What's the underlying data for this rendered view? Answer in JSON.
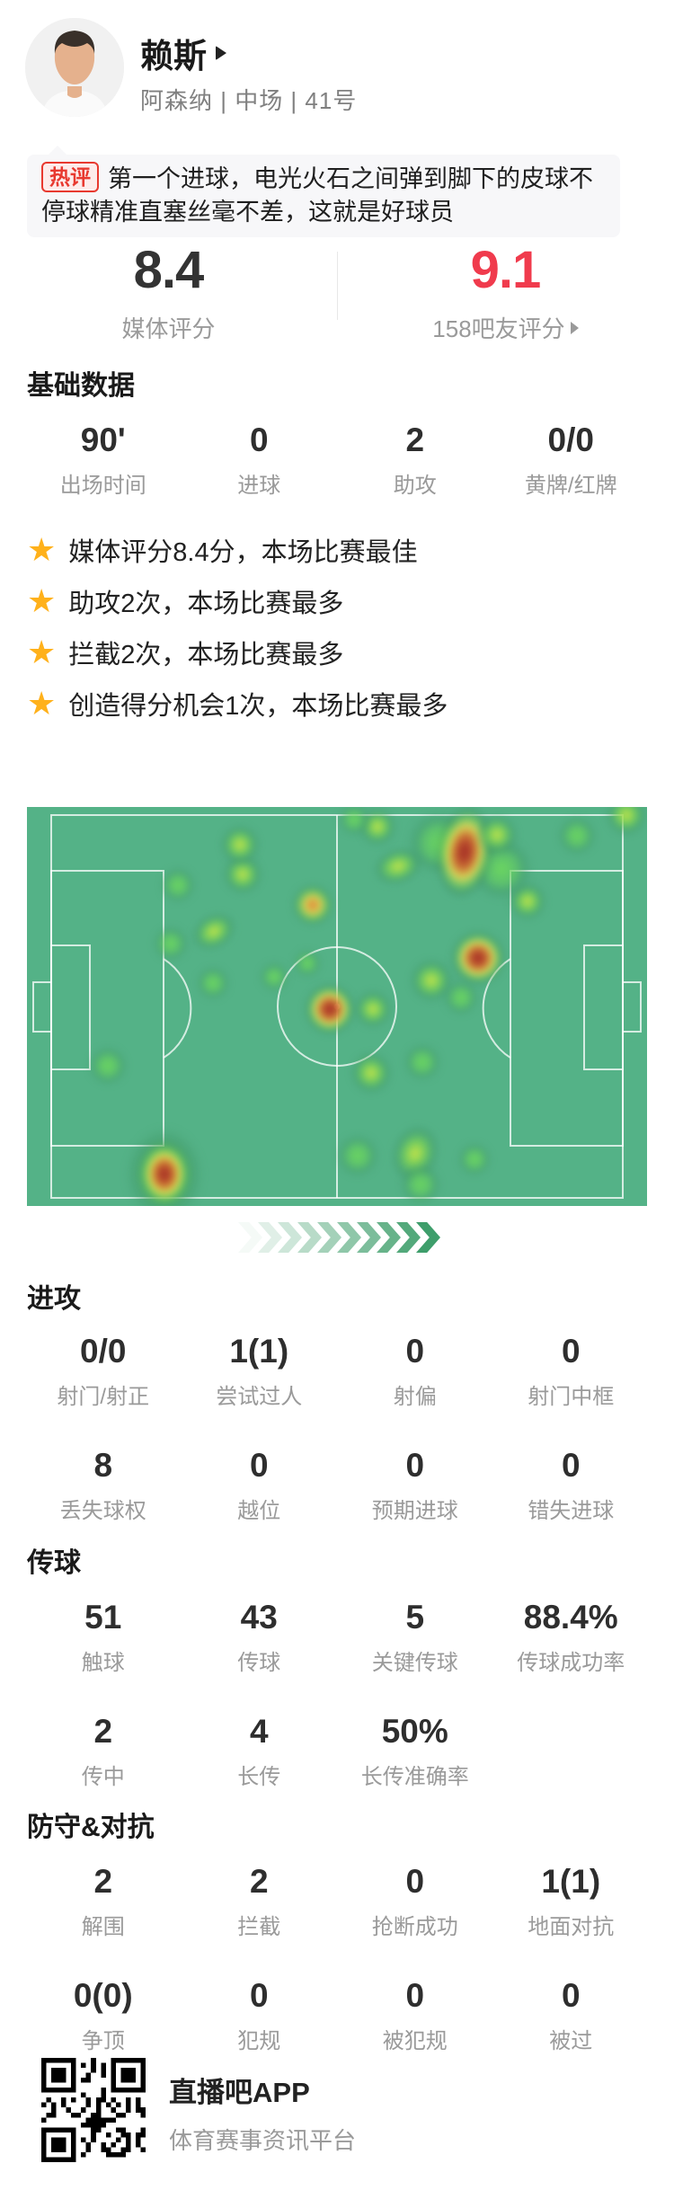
{
  "header": {
    "player_name": "赖斯",
    "team_line": "阿森纳 | 中场 | 41号"
  },
  "hot_comment": {
    "badge": "热评",
    "text": "第一个进球，电光火石之间弹到脚下的皮球不停球精准直塞丝毫不差，这就是好球员"
  },
  "ratings": {
    "media": {
      "value": "8.4",
      "label": "媒体评分"
    },
    "fans": {
      "value": "9.1",
      "label": "158吧友评分"
    },
    "media_color": "#333333",
    "fans_color": "#f03b4d"
  },
  "basic": {
    "title": "基础数据",
    "stats": [
      {
        "value": "90'",
        "label": "出场时间"
      },
      {
        "value": "0",
        "label": "进球"
      },
      {
        "value": "2",
        "label": "助攻"
      },
      {
        "value": "0/0",
        "label": "黄牌/红牌"
      }
    ]
  },
  "highlights": [
    "媒体评分8.4分，本场比赛最佳",
    "助攻2次，本场比赛最多",
    "拦截2次，本场比赛最多",
    "创造得分机会1次，本场比赛最多"
  ],
  "star_color": "#ffb11b",
  "heatmap": {
    "pitch_color": "#54b287",
    "chevron_count": 10,
    "chevron_color": "#3e9e6b",
    "points": [
      {
        "x": 24.3,
        "y": 19.6,
        "s": 40,
        "l": 1
      },
      {
        "x": 34.8,
        "y": 17.0,
        "s": 44,
        "l": 2
      },
      {
        "x": 34.3,
        "y": 9.5,
        "s": 44,
        "l": 2
      },
      {
        "x": 56.5,
        "y": 5.0,
        "s": 42,
        "l": 2
      },
      {
        "x": 52.8,
        "y": 3.2,
        "s": 36,
        "l": 1
      },
      {
        "x": 59.9,
        "y": 15.0,
        "s": 56,
        "l": 2,
        "ry": 0.72,
        "rot": -18
      },
      {
        "x": 88.7,
        "y": 7.2,
        "s": 44,
        "l": 1
      },
      {
        "x": 96.7,
        "y": 2.0,
        "s": 46,
        "l": 2
      },
      {
        "x": 80.7,
        "y": 23.6,
        "s": 42,
        "l": 2
      },
      {
        "x": 46.1,
        "y": 24.5,
        "s": 48,
        "l": 3
      },
      {
        "x": 30.1,
        "y": 31.3,
        "s": 52,
        "l": 2,
        "ry": 0.75,
        "rot": -30
      },
      {
        "x": 23.2,
        "y": 34.2,
        "s": 40,
        "l": 1
      },
      {
        "x": 45.2,
        "y": 39.2,
        "s": 32,
        "l": 1
      },
      {
        "x": 39.9,
        "y": 42.6,
        "s": 34,
        "l": 1
      },
      {
        "x": 30.0,
        "y": 44.1,
        "s": 38,
        "l": 1
      },
      {
        "x": 13.0,
        "y": 64.9,
        "s": 44,
        "l": 1
      },
      {
        "x": 48.8,
        "y": 50.7,
        "s": 58,
        "l": 4
      },
      {
        "x": 55.8,
        "y": 50.7,
        "s": 42,
        "l": 2
      },
      {
        "x": 72.8,
        "y": 37.8,
        "s": 62,
        "l": 4
      },
      {
        "x": 65.2,
        "y": 43.5,
        "s": 48,
        "l": 2
      },
      {
        "x": 70.0,
        "y": 47.7,
        "s": 40,
        "l": 1
      },
      {
        "x": 55.5,
        "y": 66.7,
        "s": 46,
        "l": 2
      },
      {
        "x": 63.8,
        "y": 64.0,
        "s": 42,
        "l": 1
      },
      {
        "x": 66.5,
        "y": 9.0,
        "s": 72,
        "l": 1
      },
      {
        "x": 76.5,
        "y": 15.5,
        "s": 70,
        "l": 1
      },
      {
        "x": 70.6,
        "y": 11.3,
        "s": 66,
        "l": 4,
        "ry": 1.6,
        "rot": 8
      },
      {
        "x": 75.8,
        "y": 7.0,
        "s": 46,
        "l": 2
      },
      {
        "x": 53.3,
        "y": 87.4,
        "s": 48,
        "l": 1
      },
      {
        "x": 62.6,
        "y": 86.9,
        "s": 52,
        "l": 2,
        "ry": 1.25,
        "rot": 20
      },
      {
        "x": 63.5,
        "y": 94.6,
        "s": 46,
        "l": 1
      },
      {
        "x": 72.2,
        "y": 88.3,
        "s": 38,
        "l": 1
      },
      {
        "x": 22.2,
        "y": 92.1,
        "s": 88,
        "l": 1,
        "ry": 1.2
      },
      {
        "x": 22.2,
        "y": 92.1,
        "s": 60,
        "l": 4,
        "ry": 1.25
      }
    ]
  },
  "attack": {
    "title": "进攻",
    "stats": [
      {
        "value": "0/0",
        "label": "射门/射正"
      },
      {
        "value": "1(1)",
        "label": "尝试过人"
      },
      {
        "value": "0",
        "label": "射偏"
      },
      {
        "value": "0",
        "label": "射门中框"
      },
      {
        "value": "8",
        "label": "丢失球权"
      },
      {
        "value": "0",
        "label": "越位"
      },
      {
        "value": "0",
        "label": "预期进球"
      },
      {
        "value": "0",
        "label": "错失进球"
      }
    ]
  },
  "passing": {
    "title": "传球",
    "stats": [
      {
        "value": "51",
        "label": "触球"
      },
      {
        "value": "43",
        "label": "传球"
      },
      {
        "value": "5",
        "label": "关键传球"
      },
      {
        "value": "88.4%",
        "label": "传球成功率"
      },
      {
        "value": "2",
        "label": "传中"
      },
      {
        "value": "4",
        "label": "长传"
      },
      {
        "value": "50%",
        "label": "长传准确率"
      }
    ]
  },
  "defense": {
    "title": "防守&对抗",
    "stats": [
      {
        "value": "2",
        "label": "解围"
      },
      {
        "value": "2",
        "label": "拦截"
      },
      {
        "value": "0",
        "label": "抢断成功"
      },
      {
        "value": "1(1)",
        "label": "地面对抗"
      },
      {
        "value": "0(0)",
        "label": "争顶"
      },
      {
        "value": "0",
        "label": "犯规"
      },
      {
        "value": "0",
        "label": "被犯规"
      },
      {
        "value": "0",
        "label": "被过"
      }
    ]
  },
  "footer": {
    "app_name": "直播吧APP",
    "tagline": "体育赛事资讯平台"
  }
}
